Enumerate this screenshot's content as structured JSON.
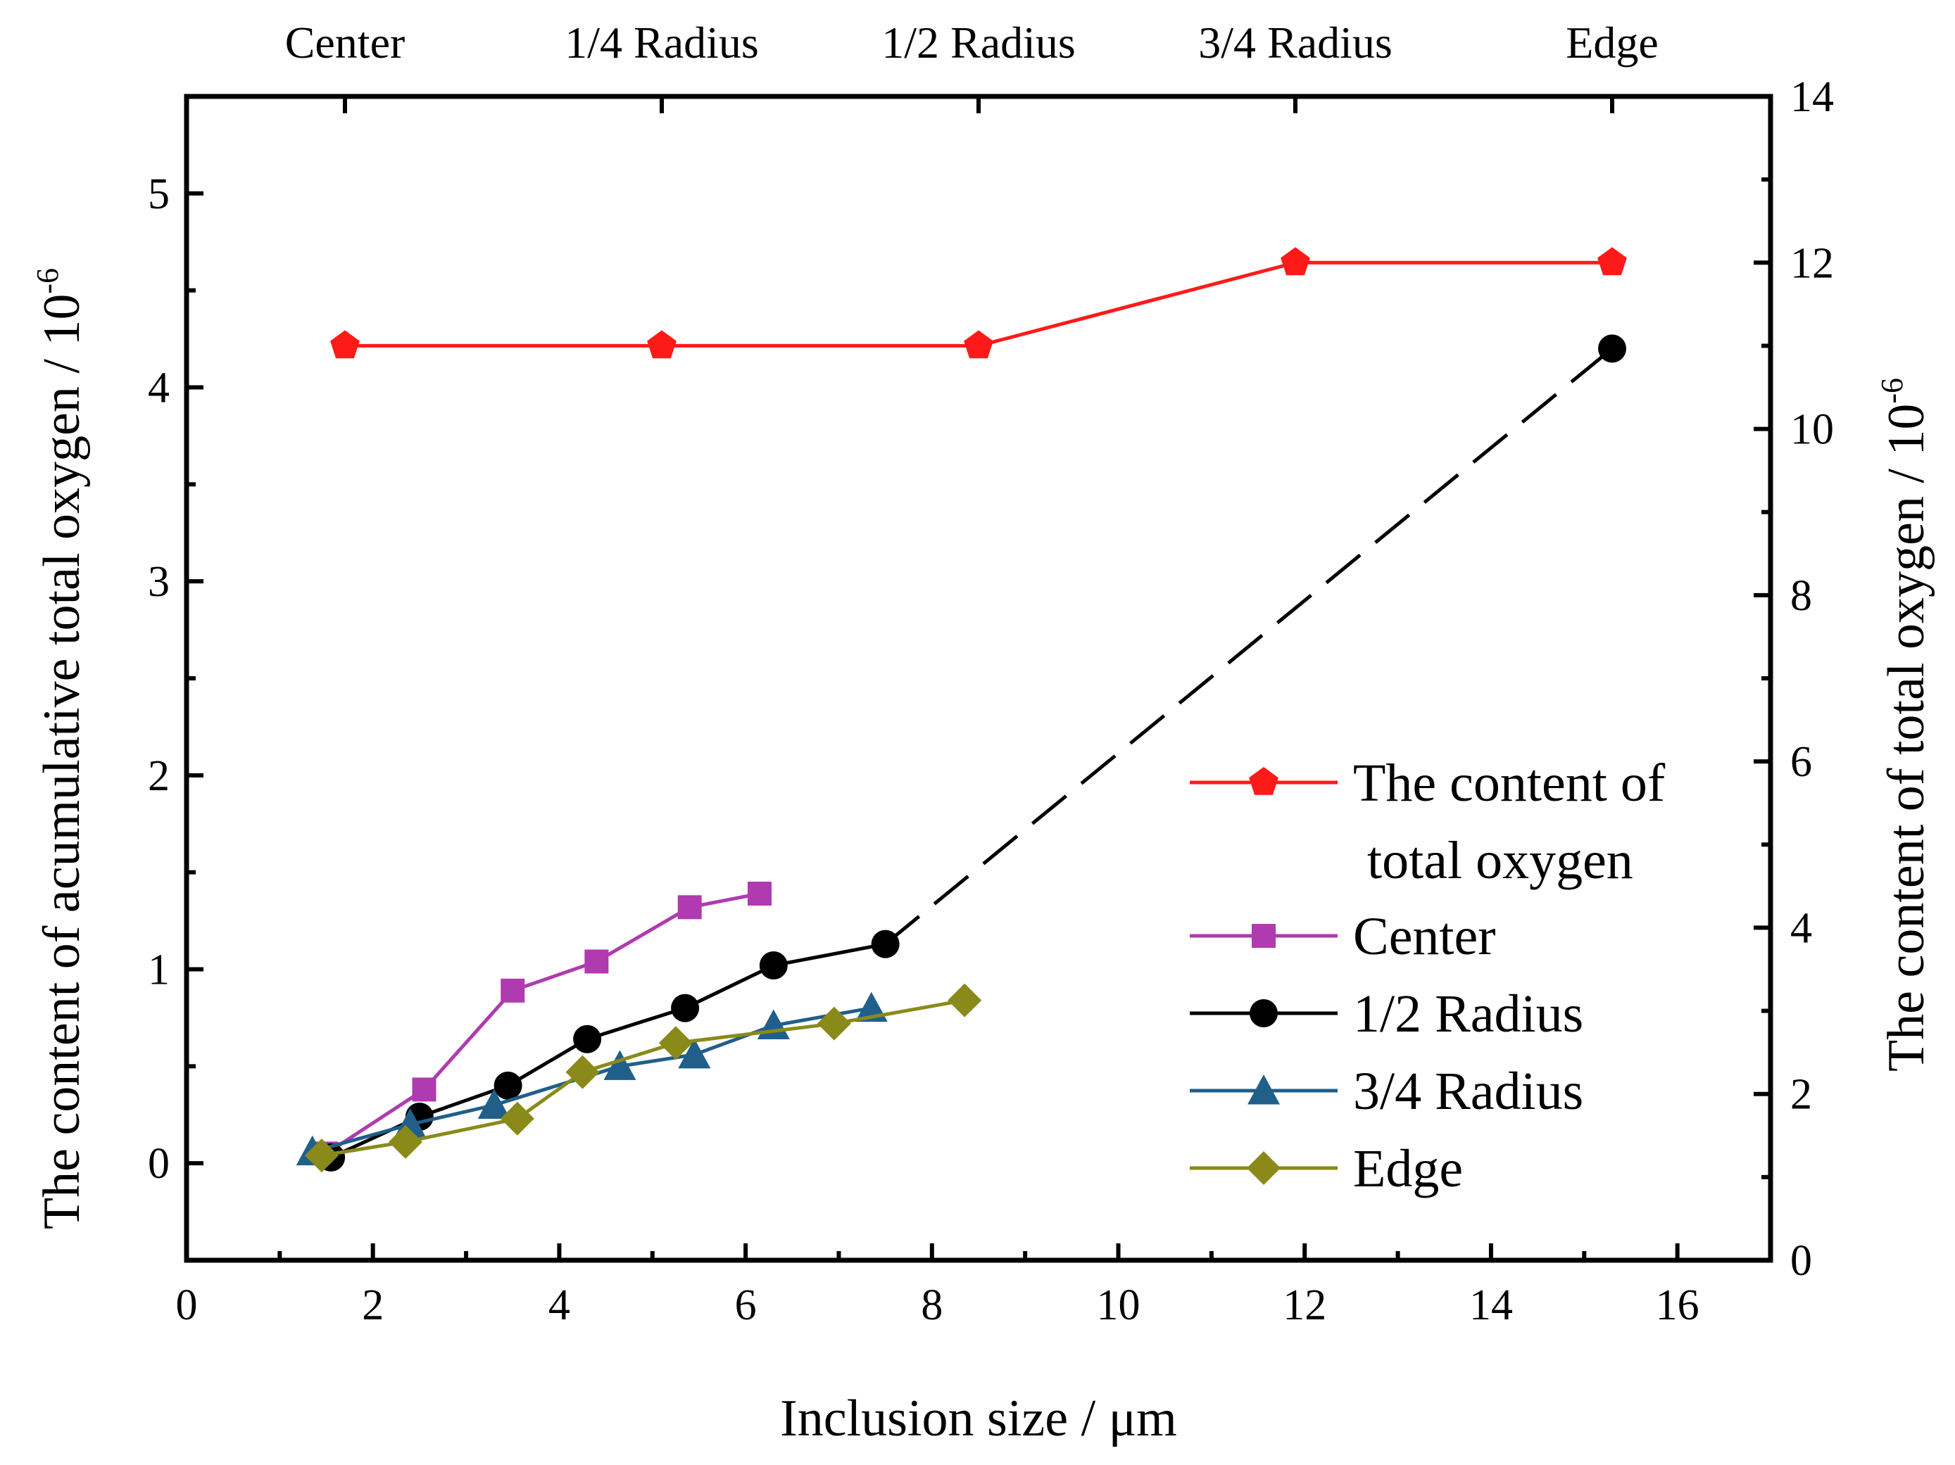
{
  "chart_data": {
    "type": "line",
    "title": "",
    "xlabel": "Inclusion size / μm",
    "ylabel_left": "The content of acumulative total oxygen / 10",
    "ylabel_left_exp": "-6",
    "ylabel_right": "The content of total oxygen / 10",
    "ylabel_right_exp": "-6",
    "xlim": [
      0,
      17
    ],
    "ylim_left": [
      -0.5,
      5.5
    ],
    "ylim_right": [
      0,
      14
    ],
    "x_ticks": [
      0,
      2,
      4,
      6,
      8,
      10,
      12,
      14,
      16
    ],
    "y_left_ticks": [
      0,
      1,
      2,
      3,
      4,
      5
    ],
    "y_right_ticks": [
      0,
      2,
      4,
      6,
      8,
      10,
      12,
      14
    ],
    "top_categories": [
      {
        "label": "Center",
        "x": 1.7
      },
      {
        "label": "1/4 Radius",
        "x": 5.1
      },
      {
        "label": "1/2 Radius",
        "x": 8.5
      },
      {
        "label": "3/4 Radius",
        "x": 11.9
      },
      {
        "label": "Edge",
        "x": 15.3
      }
    ],
    "series": [
      {
        "name": "The content of total oxygen",
        "legend_lines": [
          "The content of",
          "total oxygen"
        ],
        "axis": "right",
        "color": "#ff1a1a",
        "marker": "pentagon",
        "x": [
          1.7,
          5.1,
          8.5,
          11.9,
          15.3
        ],
        "y": [
          11,
          11,
          11,
          12,
          12
        ]
      },
      {
        "name": "Center",
        "legend_lines": [
          "Center"
        ],
        "axis": "left",
        "color": "#b03ab0",
        "marker": "square",
        "x": [
          1.5,
          2.55,
          3.5,
          4.4,
          5.4,
          6.15
        ],
        "y": [
          0.05,
          0.38,
          0.89,
          1.04,
          1.32,
          1.39
        ]
      },
      {
        "name": "1/2 Radius",
        "legend_lines": [
          "1/2 Radius"
        ],
        "axis": "left",
        "color": "#000000",
        "marker": "circle",
        "x": [
          1.55,
          2.5,
          3.45,
          4.3,
          5.35,
          6.3,
          7.5
        ],
        "y": [
          0.03,
          0.24,
          0.4,
          0.64,
          0.8,
          1.02,
          1.13
        ],
        "extension": {
          "x": [
            7.5,
            15.3
          ],
          "y": [
            1.13,
            4.2
          ],
          "dashed": true
        }
      },
      {
        "name": "3/4 Radius",
        "legend_lines": [
          "3/4 Radius"
        ],
        "axis": "left",
        "color": "#1f5f8a",
        "marker": "triangle",
        "x": [
          1.35,
          2.4,
          3.3,
          4.65,
          5.45,
          6.3,
          7.35
        ],
        "y": [
          0.06,
          0.2,
          0.3,
          0.5,
          0.56,
          0.71,
          0.8
        ]
      },
      {
        "name": "Edge",
        "legend_lines": [
          "Edge"
        ],
        "axis": "left",
        "color": "#8a8a1a",
        "marker": "diamond",
        "x": [
          1.45,
          2.35,
          3.55,
          4.25,
          5.25,
          6.95,
          8.35
        ],
        "y": [
          0.04,
          0.11,
          0.23,
          0.47,
          0.62,
          0.72,
          0.84
        ]
      }
    ]
  }
}
